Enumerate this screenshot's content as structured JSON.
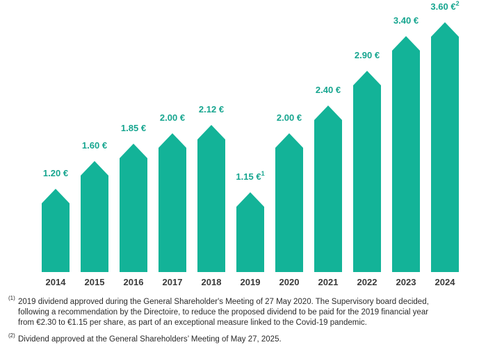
{
  "chart_data": {
    "type": "arrow-bar",
    "categories": [
      "2014",
      "2015",
      "2016",
      "2017",
      "2018",
      "2019",
      "2020",
      "2021",
      "2022",
      "2023",
      "2024"
    ],
    "values": [
      1.2,
      1.6,
      1.85,
      2.0,
      2.12,
      1.15,
      2.0,
      2.4,
      2.9,
      3.4,
      3.6
    ],
    "value_labels": [
      "1.20 €",
      "1.60 €",
      "1.85 €",
      "2.00 €",
      "2.12  €",
      "1.15 €",
      "2.00 €",
      "2.40 €",
      "2.90 €",
      "3.40 €",
      "3.60 €"
    ],
    "value_label_notes": [
      null,
      null,
      null,
      null,
      null,
      "1",
      null,
      null,
      null,
      null,
      "2"
    ],
    "color": "#13b398",
    "footnotes": [
      {
        "mark": "(1)",
        "lines": [
          "2019 dividend approved during the General Shareholder's Meeting of 27 May 2020. The Supervisory board decided,",
          "following a recommendation by the Directoire, to reduce the proposed dividend to be paid for the 2019 financial year",
          "from €2.30 to €1.15 per share, as part of an exceptional measure linked to the Covid-19 pandemic."
        ]
      },
      {
        "mark": "(2)",
        "lines": [
          "Dividend approved at the General Shareholders’ Meeting of May 27, 2025."
        ]
      }
    ]
  }
}
